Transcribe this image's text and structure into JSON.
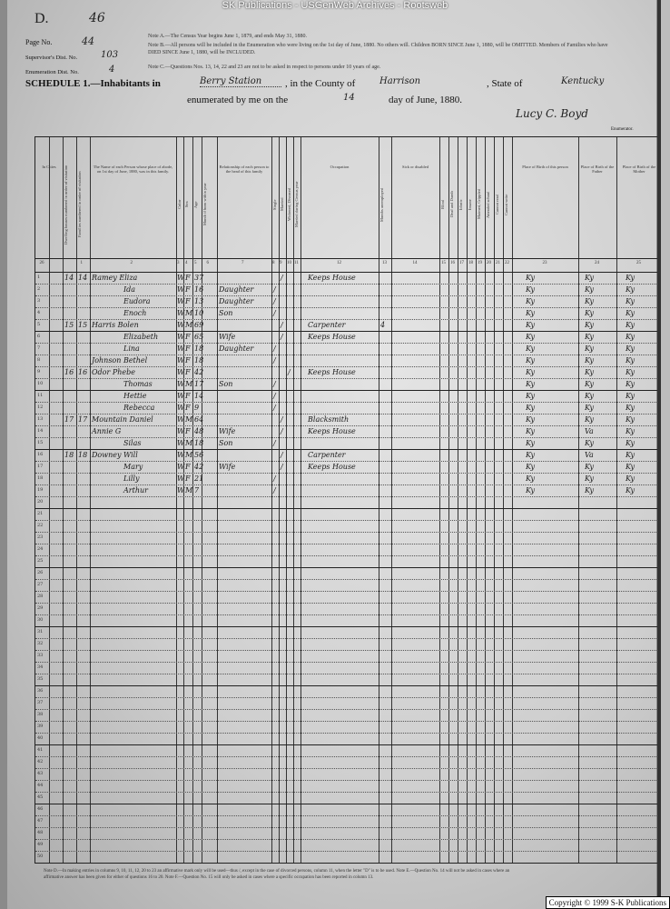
{
  "banner": "SK Publications - USGenWeb Archives - Rootsweb",
  "header": {
    "letter": "D.",
    "sheet": "46",
    "page_no_label": "Page No.",
    "page_no": "44",
    "supervisor_label": "Supervisor's Dist. No.",
    "supervisor": "103",
    "enumeration_label": "Enumeration Dist. No.",
    "enumeration": "4",
    "note_a": "Note A.—The Census Year begins June 1, 1879, and ends May 31, 1880.",
    "note_b": "Note B.—All persons will be included in the Enumeration who were living on the 1st day of June, 1880. No others will. Children BORN SINCE June 1, 1880, will be OMITTED. Members of Families who have DIED SINCE June 1, 1880, will be INCLUDED.",
    "note_c": "Note C.—Questions Nos. 13, 14, 22 and 23 are not to be asked in respect to persons under 10 years of age.",
    "schedule": "SCHEDULE 1.—Inhabitants in",
    "place": "Berry Station",
    "county_label": ", in the County of",
    "county": "Harrison",
    "state_label": ", State of",
    "state": "Kentucky",
    "enumerated_label": "enumerated by me on the",
    "day": "14",
    "day_suffix": "day of June, 1880.",
    "enumerator": "Lucy C. Boyd",
    "enumerator_label": "Enumerator."
  },
  "column_headers": [
    "In Cities",
    "Dwelling houses numbered in order of visitation",
    "Families numbered in order of visitation",
    "The Name of each Person whose place of abode, on 1st day of June, 1880, was in this family.",
    "Color",
    "Sex",
    "Age",
    "Month if born within year",
    "Relationship of each person to the head of this family",
    "Single",
    "Married",
    "Widowed, Divorced",
    "Married during Census year",
    "Occupation",
    "Months unemployed",
    "Sick or disabled",
    "Blind",
    "Deaf and Dumb",
    "Idiotic",
    "Insane",
    "Maimed, Crippled",
    "Attended school",
    "Cannot read",
    "Cannot write",
    "Place of Birth of this person",
    "Place of Birth of the Father",
    "Place of Birth of the Mother"
  ],
  "column_numbers": [
    "1",
    "2",
    "3",
    "4",
    "5",
    "6",
    "7",
    "8",
    "9",
    "10",
    "11",
    "12",
    "13",
    "14",
    "15",
    "16",
    "17",
    "18",
    "19",
    "20",
    "21",
    "22",
    "23",
    "24",
    "25",
    "26"
  ],
  "rows": [
    {
      "dw": "14",
      "fam": "14",
      "name": "Ramey Eliza",
      "color": "W",
      "sex": "F",
      "age": "37",
      "rel": "",
      "civ": "m",
      "occ": "Keeps House",
      "unemp": "",
      "b": "Ky",
      "f": "Ky",
      "m": "Ky"
    },
    {
      "name": "Ida",
      "color": "W",
      "sex": "F",
      "age": "16",
      "rel": "Daughter",
      "civ": "s",
      "occ": "",
      "b": "Ky",
      "f": "Ky",
      "m": "Ky"
    },
    {
      "name": "Eudora",
      "color": "W",
      "sex": "F",
      "age": "13",
      "rel": "Daughter",
      "civ": "s",
      "occ": "",
      "b": "Ky",
      "f": "Ky",
      "m": "Ky"
    },
    {
      "name": "Enoch",
      "color": "W",
      "sex": "M",
      "age": "10",
      "rel": "Son",
      "civ": "s",
      "occ": "",
      "b": "Ky",
      "f": "Ky",
      "m": "Ky"
    },
    {
      "dw": "15",
      "fam": "15",
      "name": "Harris Bolen",
      "color": "W",
      "sex": "M",
      "age": "69",
      "rel": "",
      "civ": "m",
      "occ": "Carpenter",
      "unemp": "4",
      "b": "Ky",
      "f": "Ky",
      "m": "Ky"
    },
    {
      "name": "Elizabeth",
      "color": "W",
      "sex": "F",
      "age": "65",
      "rel": "Wife",
      "civ": "m",
      "occ": "Keeps House",
      "b": "Ky",
      "f": "Ky",
      "m": "Ky"
    },
    {
      "name": "Lina",
      "color": "W",
      "sex": "F",
      "age": "18",
      "rel": "Daughter",
      "civ": "s",
      "occ": "",
      "b": "Ky",
      "f": "Ky",
      "m": "Ky"
    },
    {
      "name": "Johnson Bethel",
      "color": "W",
      "sex": "F",
      "age": "18",
      "rel": "",
      "civ": "s",
      "occ": "",
      "b": "Ky",
      "f": "Ky",
      "m": "Ky"
    },
    {
      "dw": "16",
      "fam": "16",
      "name": "Odor Phebe",
      "color": "W",
      "sex": "F",
      "age": "42",
      "rel": "",
      "civ": "w",
      "occ": "Keeps House",
      "b": "Ky",
      "f": "Ky",
      "m": "Ky"
    },
    {
      "name": "Thomas",
      "color": "W",
      "sex": "M",
      "age": "17",
      "rel": "Son",
      "civ": "s",
      "occ": "",
      "b": "Ky",
      "f": "Ky",
      "m": "Ky"
    },
    {
      "name": "Hettie",
      "color": "W",
      "sex": "F",
      "age": "14",
      "rel": "",
      "civ": "s",
      "occ": "",
      "b": "Ky",
      "f": "Ky",
      "m": "Ky"
    },
    {
      "name": "Rebecca",
      "color": "W",
      "sex": "F",
      "age": "9",
      "rel": "",
      "civ": "s",
      "occ": "",
      "b": "Ky",
      "f": "Ky",
      "m": "Ky"
    },
    {
      "dw": "17",
      "fam": "17",
      "name": "Mountain Daniel",
      "color": "W",
      "sex": "M",
      "age": "64",
      "rel": "",
      "civ": "m",
      "occ": "Blacksmith",
      "b": "Ky",
      "f": "Ky",
      "m": "Ky"
    },
    {
      "name": "Annie G",
      "color": "W",
      "sex": "F",
      "age": "48",
      "rel": "Wife",
      "civ": "m",
      "occ": "Keeps House",
      "b": "Ky",
      "f": "Va",
      "m": "Ky"
    },
    {
      "name": "Silas",
      "color": "W",
      "sex": "M",
      "age": "18",
      "rel": "Son",
      "civ": "s",
      "occ": "",
      "b": "Ky",
      "f": "Ky",
      "m": "Ky"
    },
    {
      "dw": "18",
      "fam": "18",
      "name": "Downey Will",
      "color": "W",
      "sex": "M",
      "age": "56",
      "rel": "",
      "civ": "m",
      "occ": "Carpenter",
      "b": "Ky",
      "f": "Va",
      "m": "Ky"
    },
    {
      "name": "Mary",
      "color": "W",
      "sex": "F",
      "age": "42",
      "rel": "Wife",
      "civ": "m",
      "occ": "Keeps House",
      "b": "Ky",
      "f": "Ky",
      "m": "Ky"
    },
    {
      "name": "Lilly",
      "color": "W",
      "sex": "F",
      "age": "21",
      "rel": "",
      "civ": "s",
      "occ": "",
      "b": "Ky",
      "f": "Ky",
      "m": "Ky"
    },
    {
      "name": "Arthur",
      "color": "W",
      "sex": "M",
      "age": "7",
      "rel": "",
      "civ": "s",
      "occ": "",
      "b": "Ky",
      "f": "Ky",
      "m": "Ky"
    }
  ],
  "row_count": 50,
  "footer_notes": "Note D.—In making entries in columns 9, 10, 11, 12, 20 to 23 an affirmative mark only will be used—thus /, except in the case of divorced persons, column 11, when the letter \"D\" is to be used. Note E.—Question No. 14 will not be asked in cases where an affirmative answer has been given for either of questions 16 to 20. Note F.—Question No. 15 will only be asked in cases where a specific occupation has been reported in column 13.",
  "copyright": "Copyright © 1999 S-K Publications"
}
